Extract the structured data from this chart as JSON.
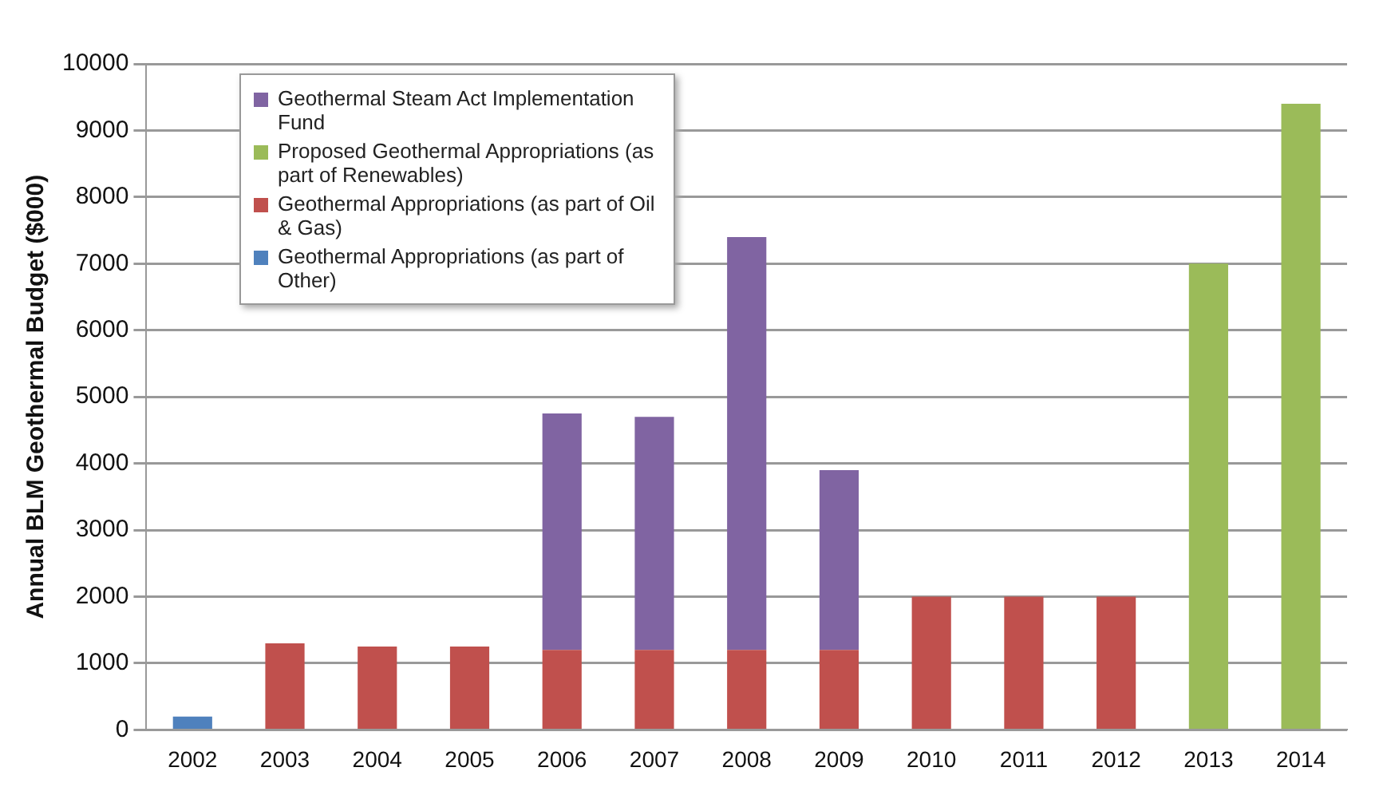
{
  "chart_data": {
    "type": "bar",
    "ylabel": "Annual BLM Geothermal Budget ($000)",
    "categories": [
      "2002",
      "2003",
      "2004",
      "2005",
      "2006",
      "2007",
      "2008",
      "2009",
      "2010",
      "2011",
      "2012",
      "2013",
      "2014"
    ],
    "stacked": true,
    "series": [
      {
        "name": "Geothermal Appropriations (as part of Other)",
        "color": "#4f81bd",
        "values": [
          200,
          null,
          null,
          null,
          null,
          null,
          null,
          null,
          null,
          null,
          null,
          null,
          null
        ]
      },
      {
        "name": "Geothermal Appropriations (as part of Oil & Gas)",
        "color": "#c0504d",
        "values": [
          null,
          1300,
          1250,
          1250,
          1200,
          1200,
          1200,
          1200,
          2000,
          2000,
          2000,
          null,
          null
        ]
      },
      {
        "name": "Proposed Geothermal Appropriations (as part of Renewables)",
        "color": "#9bbb59",
        "values": [
          null,
          null,
          null,
          null,
          null,
          null,
          null,
          null,
          null,
          null,
          null,
          7000,
          9400
        ]
      },
      {
        "name": "Geothermal Steam Act Implementation Fund",
        "color": "#8064a2",
        "values": [
          null,
          null,
          null,
          null,
          3550,
          3500,
          6200,
          2700,
          null,
          null,
          null,
          null,
          null
        ]
      }
    ],
    "ylim": [
      0,
      10000
    ],
    "yticks": [
      0,
      1000,
      2000,
      3000,
      4000,
      5000,
      6000,
      7000,
      8000,
      9000,
      10000
    ],
    "grid": "y",
    "legend": "top left"
  }
}
